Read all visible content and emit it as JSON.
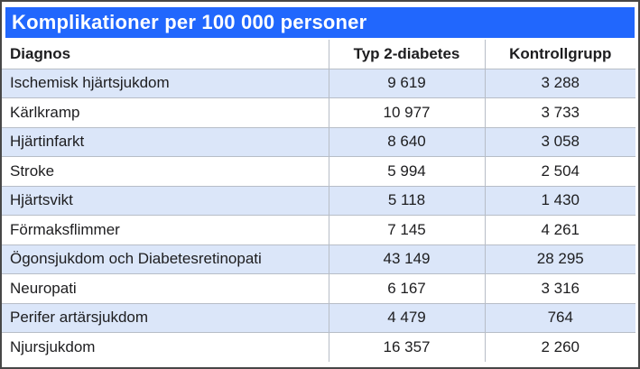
{
  "title": "Komplikationer per 100 000 personer",
  "colors": {
    "accent": "#2167FD",
    "title_text": "#FFFFFF",
    "row_alt_bg": "#DBE6F9",
    "grid": "#B7BDC7",
    "frame_border": "#474747",
    "text": "#1D1D1F"
  },
  "chart_data": {
    "type": "table",
    "title": "Komplikationer per 100 000 personer",
    "columns": [
      "Diagnos",
      "Typ 2-diabetes",
      "Kontrollgrupp"
    ],
    "rows": [
      [
        "Ischemisk hjärtsjukdom",
        "9 619",
        "3 288"
      ],
      [
        "Kärlkramp",
        "10 977",
        "3 733"
      ],
      [
        "Hjärtinfarkt",
        "8 640",
        "3 058"
      ],
      [
        "Stroke",
        "5 994",
        "2 504"
      ],
      [
        "Hjärtsvikt",
        "5 118",
        "1 430"
      ],
      [
        "Förmaksflimmer",
        "7 145",
        "4 261"
      ],
      [
        "Ögonsjukdom och Diabetesretinopati",
        "43 149",
        "28 295"
      ],
      [
        "Neuropati",
        "6 167",
        "3 316"
      ],
      [
        "Perifer artärsjukdom",
        "4 479",
        "764"
      ],
      [
        "Njursjukdom",
        "16 357",
        "2 260"
      ]
    ],
    "categories": [
      "Ischemisk hjärtsjukdom",
      "Kärlkramp",
      "Hjärtinfarkt",
      "Stroke",
      "Hjärtsvikt",
      "Förmaksflimmer",
      "Ögonsjukdom och Diabetesretinopati",
      "Neuropati",
      "Perifer artärsjukdom",
      "Njursjukdom"
    ],
    "series": [
      {
        "name": "Typ 2-diabetes",
        "values": [
          9619,
          10977,
          8640,
          5994,
          5118,
          7145,
          43149,
          6167,
          4479,
          16357
        ]
      },
      {
        "name": "Kontrollgrupp",
        "values": [
          3288,
          3733,
          3058,
          2504,
          1430,
          4261,
          28295,
          3316,
          764,
          2260
        ]
      }
    ],
    "layout_hints": {
      "striped_rows": true,
      "stripe_pattern": "odd rows light blue starting with first data row",
      "value_alignment": "center",
      "diagnosis_alignment": "left"
    }
  }
}
